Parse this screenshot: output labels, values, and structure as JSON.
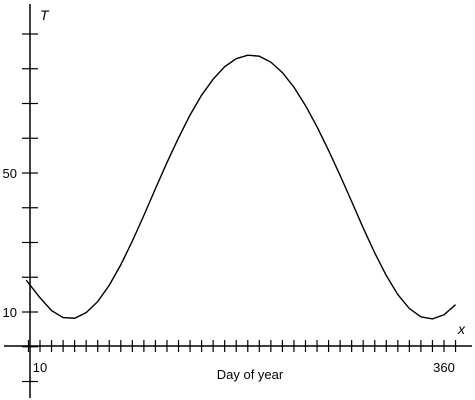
{
  "chart_data": {
    "type": "line",
    "title": "",
    "xlabel": "Day of year",
    "ylabel": "",
    "x_var": "x",
    "y_var": "T",
    "x_tick_labels": [
      {
        "value": 10,
        "text": "10"
      },
      {
        "value": 360,
        "text": "360"
      }
    ],
    "y_tick_labels": [
      {
        "value": 10,
        "text": "10"
      },
      {
        "value": 50,
        "text": "50"
      }
    ],
    "x_tick_step": 10,
    "y_tick_step": 10,
    "xlim": [
      -2,
      372
    ],
    "ylim": [
      -7,
      95
    ],
    "grid": false,
    "legend": "none",
    "series": [
      {
        "function": "T = 46 + 38*sin(2*pi*(x - 101)/365)",
        "x": [
          -2,
          10,
          20,
          30,
          40,
          50,
          60,
          70,
          80,
          90,
          100,
          110,
          120,
          130,
          140,
          150,
          160,
          170,
          180,
          190,
          200,
          210,
          220,
          230,
          240,
          250,
          260,
          270,
          280,
          290,
          300,
          310,
          320,
          330,
          340,
          350,
          360,
          370
        ],
        "y": [
          19.2,
          14.1,
          10.4,
          8.4,
          8.2,
          9.8,
          13.0,
          17.7,
          23.6,
          30.4,
          37.8,
          45.5,
          53.0,
          60.1,
          66.7,
          72.4,
          77.0,
          80.6,
          82.9,
          83.9,
          83.6,
          81.9,
          78.9,
          74.7,
          69.4,
          63.3,
          56.5,
          49.3,
          41.8,
          34.2,
          27.0,
          20.5,
          15.0,
          11.0,
          8.6,
          8.0,
          9.2,
          12.1
        ]
      }
    ]
  }
}
